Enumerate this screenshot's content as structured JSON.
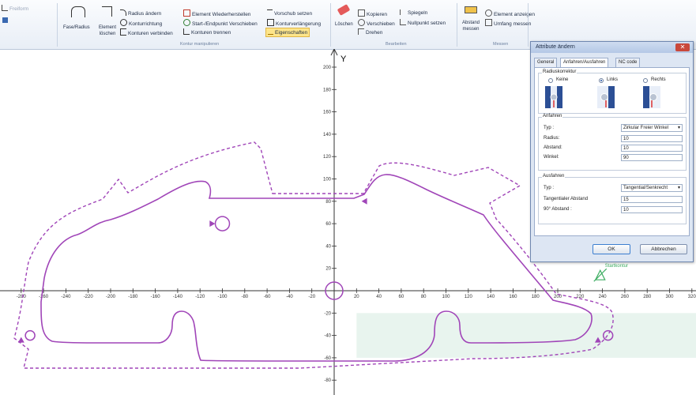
{
  "ribbon": {
    "quick": {
      "item1": "Freiform"
    },
    "kontur": {
      "fase_radius": "Fase/Radius",
      "element_loeschen_1": "Element",
      "element_loeschen_2": "löschen",
      "radius_aendern": "Radius ändern",
      "konturrichtung": "Konturrichtung",
      "konturen_verbinden": "Konturen verbinden",
      "element_wiederherstellen": "Element Wiederherstellen",
      "start_endpunkt": "Start-/Endpunkt Verschieben",
      "konturen_trennen": "Konturen trennen",
      "vorschub_setzen": "Vorschub setzen",
      "konturverlaengerung": "Konturverlängerung",
      "eigenschaften": "Eigenschaften",
      "group_label": "Kontur manipulieren"
    },
    "bearbeiten": {
      "loeschen": "Löschen",
      "kopieren": "Kopieren",
      "verschieben": "Verschieben",
      "drehen": "Drehen",
      "spiegeln": "Spiegeln",
      "nullpunkt_setzen": "Nullpunkt setzen",
      "group_label": "Bearbeiten"
    },
    "messen": {
      "abstand_messen_1": "Abstand",
      "abstand_messen_2": "messen",
      "element_anzeigen": "Element anzeigen",
      "umfang_messen": "Umfang messen",
      "group_label": "Messen"
    }
  },
  "canvas": {
    "axis_y_label": "Y",
    "x_ticks": [
      -280,
      -260,
      -240,
      -220,
      -200,
      -180,
      -160,
      -140,
      -120,
      -100,
      -80,
      -60,
      -40,
      -20,
      20,
      40,
      60,
      80,
      100,
      120,
      140,
      160,
      180,
      200,
      220,
      240,
      260,
      280,
      300,
      320
    ],
    "x_ticks_text": [
      "-280",
      "-260",
      "-240",
      "-220",
      "-200",
      "-180",
      "-160",
      "-140",
      "-120",
      "-100",
      "-80",
      "-60",
      "-40",
      "-20",
      "20",
      "40",
      "60",
      "80",
      "100",
      "120",
      "140",
      "160",
      "180",
      "200",
      "220",
      "240",
      "260",
      "280",
      "300",
      "320"
    ],
    "y_ticks": [
      200,
      180,
      160,
      140,
      120,
      100,
      80,
      60,
      40,
      20,
      -20,
      -40,
      -60,
      -80
    ],
    "y_ticks_text": [
      "200",
      "180",
      "160",
      "140",
      "120",
      "100",
      "80",
      "60",
      "40",
      "20",
      "-20",
      "-40",
      "-60",
      "-80"
    ],
    "marker_label": "Startkontur",
    "colors": {
      "contour": "#a045b8",
      "offset": "#a045b8",
      "axis": "#333333",
      "highlight": "#e8f4ee",
      "marker": "#3fae63"
    }
  },
  "dialog": {
    "title": "Attribute ändern",
    "close_icon": "close-icon",
    "tabs": [
      {
        "label": "General",
        "active": false
      },
      {
        "label": "Anfahren/Ausfahren",
        "active": true
      },
      {
        "label": "NC code",
        "active": false
      }
    ],
    "radiuskorrektur": {
      "legend": "Radiuskorrektur",
      "options": [
        {
          "label": "Keine",
          "selected": false
        },
        {
          "label": "Links",
          "selected": true
        },
        {
          "label": "Rechts",
          "selected": false
        }
      ]
    },
    "anfahren": {
      "legend": "Anfahren",
      "typ_label": "Typ :",
      "typ_value": "Zirkular Freier Winkel",
      "radius_label": "Radius:",
      "radius_value": "10",
      "abstand_label": "Abstand:",
      "abstand_value": "10",
      "winkel_label": "Winkel:",
      "winkel_value": "90"
    },
    "ausfahren": {
      "legend": "Ausfahren",
      "typ_label": "Typ :",
      "typ_value": "Tangential/Senkrecht",
      "tangential_label": "Tangentialer Abstand",
      "tangential_value": "15",
      "abstand90_label": "90° Abstand :",
      "abstand90_value": "10"
    },
    "ok_label": "OK",
    "cancel_label": "Abbrechen"
  }
}
